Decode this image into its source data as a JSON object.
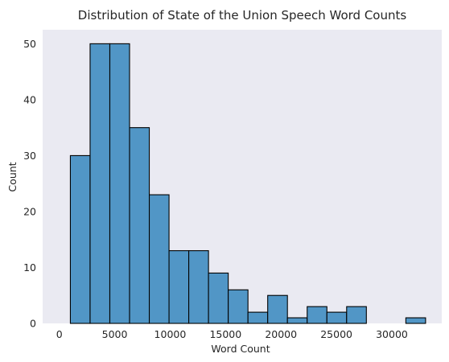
{
  "chart_data": {
    "type": "bar",
    "title": "Distribution of State of the Union Speech Word Counts",
    "xlabel": "Word Count",
    "ylabel": "Count",
    "xlim": [
      -1500,
      34500
    ],
    "ylim": [
      0,
      52.5
    ],
    "xticks": [
      0,
      5000,
      10000,
      15000,
      20000,
      25000,
      30000
    ],
    "yticks": [
      0,
      10,
      20,
      30,
      40,
      50
    ],
    "bin_edges": [
      1000,
      2780,
      4560,
      6340,
      8120,
      9900,
      11680,
      13460,
      15240,
      17020,
      18800,
      20580,
      22360,
      24140,
      25920,
      27700,
      29480,
      31260,
      33040
    ],
    "counts": [
      30,
      50,
      50,
      35,
      23,
      13,
      13,
      9,
      6,
      2,
      5,
      1,
      3,
      2,
      3,
      0,
      0,
      1
    ],
    "grid": false,
    "bar_color": "#5196c6",
    "edge_color": "#000000",
    "background_color": "#eaeaf2"
  }
}
